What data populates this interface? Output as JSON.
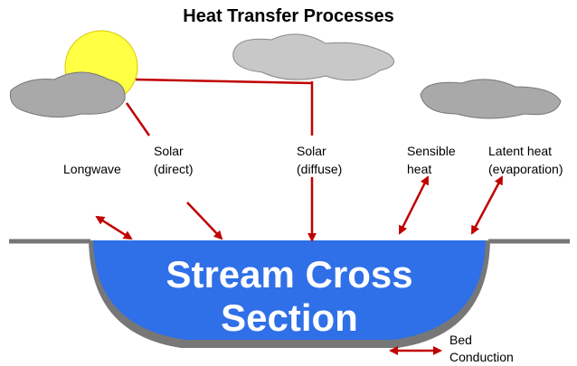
{
  "title": "Heat Transfer Processes",
  "processes": [
    {
      "lines": [
        "Longwave"
      ]
    },
    {
      "lines": [
        "Solar",
        "(direct)"
      ]
    },
    {
      "lines": [
        "Solar",
        "(diffuse)"
      ]
    },
    {
      "lines": [
        "Sensible",
        "heat"
      ]
    },
    {
      "lines": [
        "Latent heat",
        "(evaporation)"
      ]
    },
    {
      "lines": [
        "Bed",
        "Conduction"
      ]
    }
  ],
  "section": [
    "Stream Cross",
    "Section"
  ]
}
